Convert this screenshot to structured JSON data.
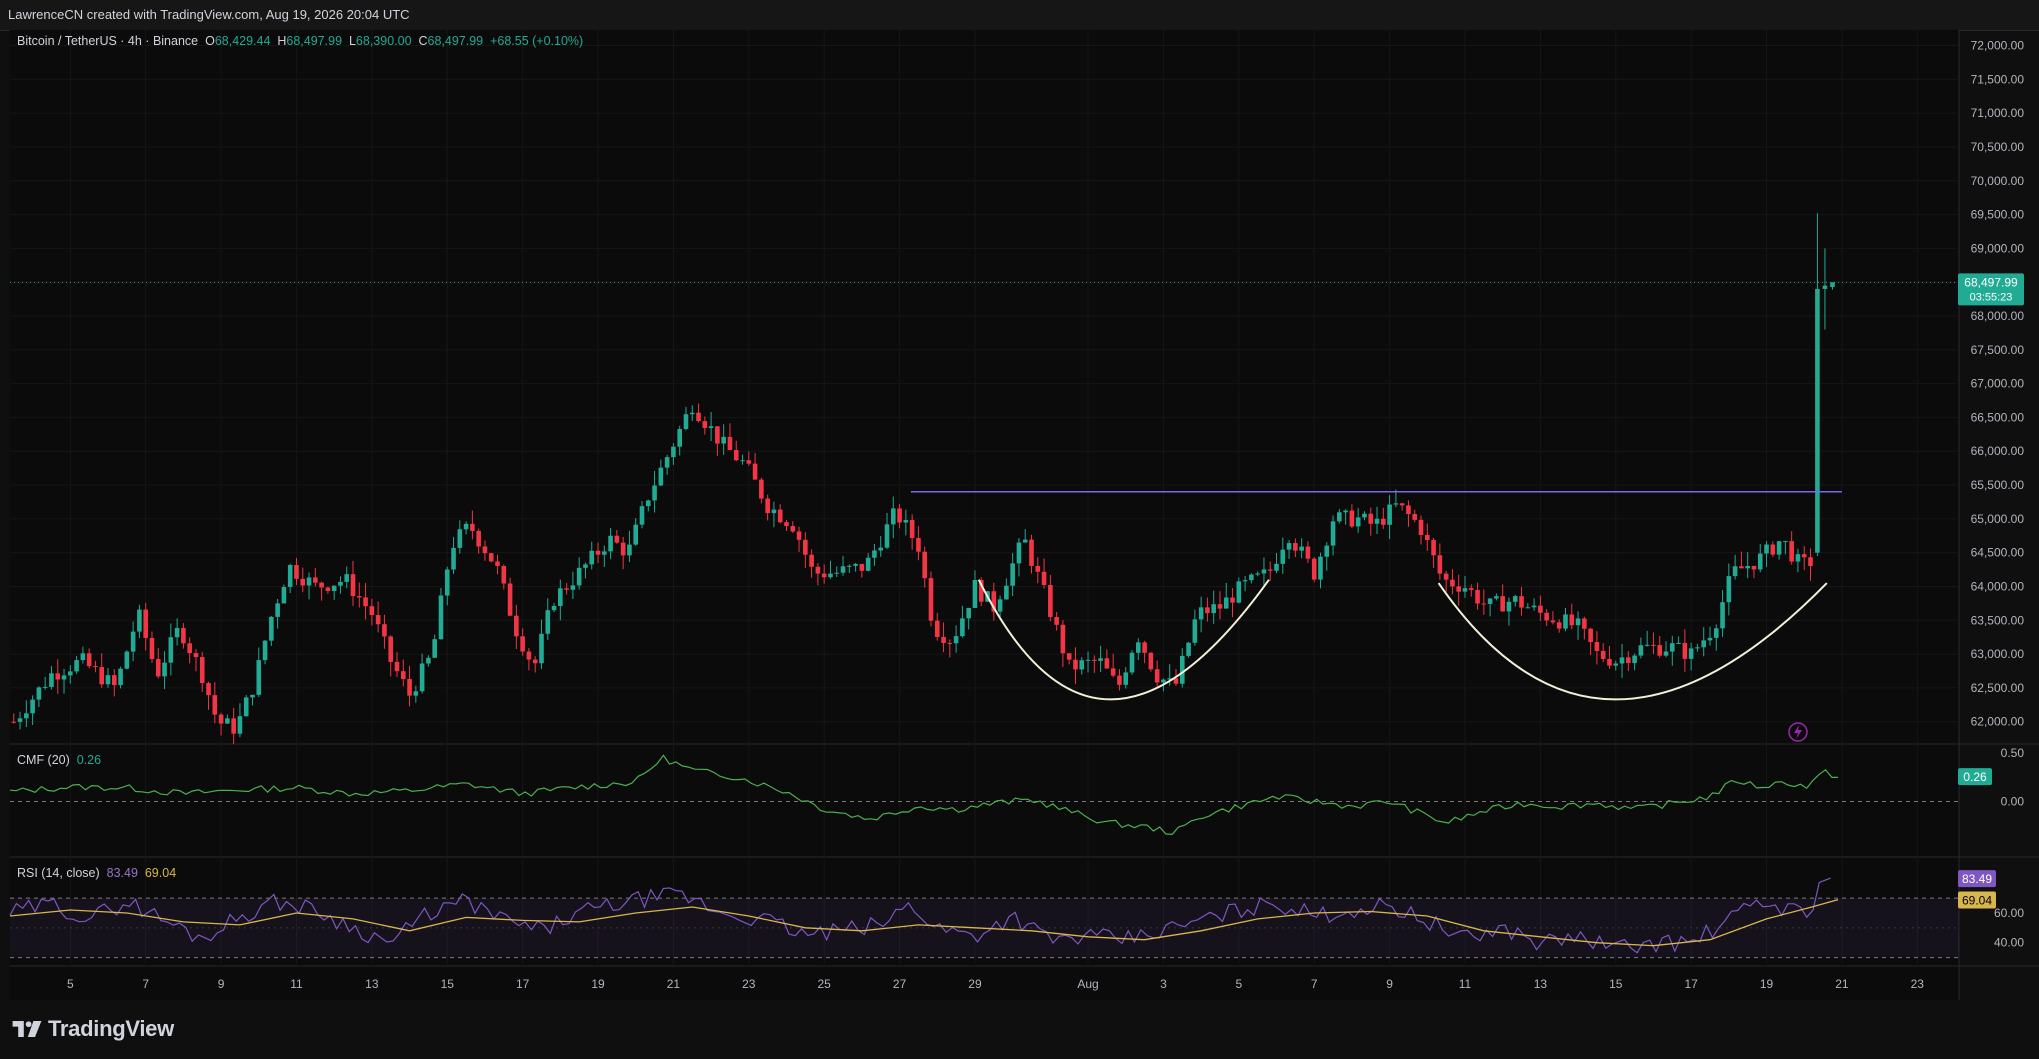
{
  "header": {
    "created_by": "LawrenceCN created with TradingView.com, Aug 19, 2026 20:04 UTC"
  },
  "legend": {
    "symbol": "Bitcoin / TetherUS · 4h · Binance",
    "o_label": "O",
    "o_value": "68,429.44",
    "h_label": "H",
    "h_value": "68,497.99",
    "l_label": "L",
    "l_value": "68,390.00",
    "c_label": "C",
    "c_value": "68,497.99",
    "change": "+68.55 (+0.10%)"
  },
  "cmf_legend": {
    "name": "CMF (20)",
    "value": "0.26"
  },
  "rsi_legend": {
    "name": "RSI (14, close)",
    "rsi_value": "83.49",
    "ma_value": "69.04"
  },
  "last_price": {
    "price": "68,497.99",
    "countdown": "03:55:23"
  },
  "brand": {
    "name": "TradingView"
  },
  "colors": {
    "up": "#22ab94",
    "down": "#f23645",
    "rsi": "#7e57c2",
    "rsi_ma": "#d8b64f",
    "cmf": "#4caf50",
    "resistance": "#7b68ee",
    "arc": "#f3f0d8"
  },
  "chart_data": {
    "type": "candlestick",
    "symbol": "Bitcoin / TetherUS",
    "interval": "4h",
    "exchange": "Binance",
    "price_axis": {
      "ylim": [
        61700,
        72200
      ],
      "ticks": [
        "62,000.00",
        "62,500.00",
        "63,000.00",
        "63,500.00",
        "64,000.00",
        "64,500.00",
        "65,000.00",
        "65,500.00",
        "66,000.00",
        "66,500.00",
        "67,000.00",
        "67,500.00",
        "68,000.00",
        "68,500.00",
        "69,000.00",
        "69,500.00",
        "70,000.00",
        "70,500.00",
        "71,000.00",
        "71,500.00",
        "72,000.00"
      ],
      "tick_values": [
        62000,
        62500,
        63000,
        63500,
        64000,
        64500,
        65000,
        65500,
        66000,
        66500,
        67000,
        67500,
        68000,
        68500,
        69000,
        69500,
        70000,
        70500,
        71000,
        71500,
        72000
      ]
    },
    "time_axis": {
      "labels": [
        "5",
        "7",
        "9",
        "11",
        "13",
        "15",
        "17",
        "19",
        "21",
        "23",
        "25",
        "27",
        "29",
        "Aug",
        "3",
        "5",
        "7",
        "9",
        "11",
        "13",
        "15",
        "17",
        "19",
        "21",
        "23"
      ],
      "label_days": [
        5,
        7,
        9,
        11,
        13,
        15,
        17,
        19,
        21,
        23,
        25,
        27,
        29,
        32,
        34,
        36,
        38,
        40,
        42,
        44,
        46,
        48,
        50,
        52,
        54
      ],
      "range_days": [
        3.4,
        55
      ]
    },
    "close_path": [
      [
        3.5,
        62000
      ],
      [
        4.5,
        62700
      ],
      [
        5.3,
        62900
      ],
      [
        6.2,
        62500
      ],
      [
        6.8,
        63600
      ],
      [
        7.3,
        62700
      ],
      [
        7.9,
        63400
      ],
      [
        8.5,
        62700
      ],
      [
        8.9,
        62000
      ],
      [
        9.4,
        61900
      ],
      [
        9.9,
        62600
      ],
      [
        10.3,
        63500
      ],
      [
        10.8,
        64300
      ],
      [
        11.5,
        64000
      ],
      [
        12.3,
        64100
      ],
      [
        13.0,
        63600
      ],
      [
        13.5,
        62900
      ],
      [
        14.0,
        62400
      ],
      [
        14.6,
        63000
      ],
      [
        15.1,
        64600
      ],
      [
        15.6,
        64900
      ],
      [
        16.3,
        64300
      ],
      [
        16.8,
        63400
      ],
      [
        17.3,
        62800
      ],
      [
        17.8,
        63800
      ],
      [
        18.5,
        64200
      ],
      [
        19.3,
        64700
      ],
      [
        19.8,
        64500
      ],
      [
        20.3,
        65300
      ],
      [
        20.9,
        66000
      ],
      [
        21.5,
        66700
      ],
      [
        22.3,
        66100
      ],
      [
        22.9,
        65800
      ],
      [
        23.5,
        65200
      ],
      [
        24.2,
        64900
      ],
      [
        24.7,
        64200
      ],
      [
        25.3,
        64200
      ],
      [
        26.1,
        64300
      ],
      [
        26.9,
        65100
      ],
      [
        27.5,
        64600
      ],
      [
        27.9,
        63400
      ],
      [
        28.4,
        63200
      ],
      [
        29.0,
        64000
      ],
      [
        29.5,
        63700
      ],
      [
        30.3,
        64700
      ],
      [
        30.9,
        63800
      ],
      [
        31.5,
        62800
      ],
      [
        32.3,
        62900
      ],
      [
        32.8,
        62500
      ],
      [
        33.3,
        63300
      ],
      [
        33.8,
        62700
      ],
      [
        34.3,
        62500
      ],
      [
        34.9,
        63600
      ],
      [
        35.5,
        63700
      ],
      [
        36.1,
        64000
      ],
      [
        36.8,
        64200
      ],
      [
        37.3,
        64800
      ],
      [
        38.0,
        64200
      ],
      [
        38.5,
        65000
      ],
      [
        39.2,
        65000
      ],
      [
        39.6,
        64900
      ],
      [
        40.2,
        65200
      ],
      [
        40.8,
        64900
      ],
      [
        41.4,
        64100
      ],
      [
        42.0,
        64000
      ],
      [
        42.6,
        63700
      ],
      [
        43.3,
        63800
      ],
      [
        44.0,
        63600
      ],
      [
        44.5,
        63500
      ],
      [
        45.0,
        63400
      ],
      [
        45.5,
        63000
      ],
      [
        46.0,
        62900
      ],
      [
        46.7,
        63100
      ],
      [
        47.5,
        63100
      ],
      [
        48.0,
        63000
      ],
      [
        48.6,
        63400
      ],
      [
        49.1,
        64200
      ],
      [
        49.8,
        64400
      ],
      [
        50.4,
        64700
      ],
      [
        50.9,
        64300
      ],
      [
        51.3,
        64400
      ],
      [
        51.35,
        68300
      ],
      [
        51.6,
        68429
      ],
      [
        51.9,
        68497.99
      ]
    ],
    "resistance_line": {
      "price": 65400,
      "from_day": 27.3,
      "to_day": 52
    },
    "rounded_bottoms": [
      {
        "start": [
          29.1,
          64100
        ],
        "bottom": [
          32.6,
          62330
        ],
        "end": [
          36.8,
          64100
        ]
      },
      {
        "start": [
          41.3,
          64050
        ],
        "bottom": [
          46.0,
          62330
        ],
        "end": [
          51.6,
          64050
        ]
      }
    ],
    "cmf": {
      "name": "CMF (20)",
      "value": 0.26,
      "ylim": [
        -0.55,
        0.58
      ],
      "ticks": [
        "0.50",
        "0.00"
      ],
      "tick_values": [
        0.5,
        0.0
      ],
      "path": [
        [
          3.4,
          0.1
        ],
        [
          5,
          0.15
        ],
        [
          6.5,
          0.14
        ],
        [
          8,
          0.08
        ],
        [
          9.5,
          0.12
        ],
        [
          11,
          0.14
        ],
        [
          12.5,
          0.08
        ],
        [
          14,
          0.11
        ],
        [
          15.5,
          0.18
        ],
        [
          17,
          0.08
        ],
        [
          18.5,
          0.15
        ],
        [
          20,
          0.2
        ],
        [
          20.7,
          0.45
        ],
        [
          21.5,
          0.32
        ],
        [
          22.7,
          0.25
        ],
        [
          24,
          0.1
        ],
        [
          25,
          -0.08
        ],
        [
          26.2,
          -0.18
        ],
        [
          27.5,
          -0.05
        ],
        [
          28.5,
          -0.08
        ],
        [
          29.5,
          -0.02
        ],
        [
          30.5,
          0.02
        ],
        [
          31.5,
          -0.1
        ],
        [
          32.5,
          -0.22
        ],
        [
          33.5,
          -0.26
        ],
        [
          34.3,
          -0.32
        ],
        [
          35,
          -0.15
        ],
        [
          36,
          -0.05
        ],
        [
          37,
          0.05
        ],
        [
          38,
          0.0
        ],
        [
          39,
          -0.05
        ],
        [
          40,
          0.0
        ],
        [
          40.8,
          -0.12
        ],
        [
          41.5,
          -0.22
        ],
        [
          42.5,
          -0.1
        ],
        [
          43.5,
          -0.02
        ],
        [
          44.5,
          -0.05
        ],
        [
          45.5,
          -0.02
        ],
        [
          46.5,
          -0.08
        ],
        [
          47.5,
          -0.02
        ],
        [
          48.5,
          0.05
        ],
        [
          49.2,
          0.22
        ],
        [
          49.8,
          0.15
        ],
        [
          50.5,
          0.2
        ],
        [
          51.1,
          0.15
        ],
        [
          51.5,
          0.3
        ],
        [
          51.9,
          0.26
        ]
      ]
    },
    "rsi": {
      "name": "RSI (14, close)",
      "value": 83.49,
      "ma_value": 69.04,
      "ylim": [
        25,
        97
      ],
      "ticks": [
        "60.00",
        "40.00"
      ],
      "tick_values": [
        60,
        40
      ],
      "bands": [
        70,
        30
      ],
      "path": [
        [
          3.4,
          60
        ],
        [
          4.5,
          66
        ],
        [
          5.5,
          56
        ],
        [
          6.5,
          68
        ],
        [
          7.5,
          55
        ],
        [
          8.5,
          43
        ],
        [
          9.5,
          58
        ],
        [
          10.5,
          68
        ],
        [
          11.5,
          62
        ],
        [
          12.5,
          50
        ],
        [
          13.5,
          40
        ],
        [
          14.5,
          60
        ],
        [
          15.5,
          68
        ],
        [
          16.5,
          55
        ],
        [
          17.5,
          48
        ],
        [
          18.5,
          60
        ],
        [
          19.5,
          66
        ],
        [
          20.3,
          70
        ],
        [
          21.2,
          72
        ],
        [
          22.3,
          60
        ],
        [
          23.5,
          55
        ],
        [
          24.5,
          45
        ],
        [
          25.5,
          48
        ],
        [
          26.5,
          52
        ],
        [
          27.3,
          66
        ],
        [
          28,
          50
        ],
        [
          29,
          45
        ],
        [
          30,
          58
        ],
        [
          31,
          42
        ],
        [
          32,
          44
        ],
        [
          33,
          42
        ],
        [
          34,
          48
        ],
        [
          35,
          55
        ],
        [
          36,
          62
        ],
        [
          37,
          67
        ],
        [
          38,
          58
        ],
        [
          39,
          62
        ],
        [
          40,
          65
        ],
        [
          41,
          55
        ],
        [
          42,
          42
        ],
        [
          43,
          50
        ],
        [
          44,
          40
        ],
        [
          45,
          44
        ],
        [
          46,
          36
        ],
        [
          47,
          40
        ],
        [
          48,
          40
        ],
        [
          49,
          55
        ],
        [
          49.8,
          68
        ],
        [
          50.5,
          63
        ],
        [
          51.1,
          60
        ],
        [
          51.5,
          83.49
        ]
      ],
      "ma_path": [
        [
          3.4,
          58
        ],
        [
          5,
          62
        ],
        [
          6.5,
          60
        ],
        [
          8,
          54
        ],
        [
          9.5,
          52
        ],
        [
          11,
          60
        ],
        [
          12.5,
          56
        ],
        [
          14,
          48
        ],
        [
          15.5,
          57
        ],
        [
          17,
          55
        ],
        [
          18.5,
          54
        ],
        [
          20,
          60
        ],
        [
          21.5,
          64
        ],
        [
          23,
          58
        ],
        [
          24.5,
          50
        ],
        [
          26,
          48
        ],
        [
          27.5,
          52
        ],
        [
          29,
          50
        ],
        [
          30.5,
          48
        ],
        [
          32,
          44
        ],
        [
          33.5,
          42
        ],
        [
          35,
          48
        ],
        [
          36.5,
          56
        ],
        [
          38,
          60
        ],
        [
          39.5,
          61
        ],
        [
          41,
          58
        ],
        [
          42.5,
          48
        ],
        [
          44,
          44
        ],
        [
          45.5,
          40
        ],
        [
          47,
          38
        ],
        [
          48.5,
          42
        ],
        [
          50,
          56
        ],
        [
          51.2,
          64
        ],
        [
          51.9,
          69.04
        ]
      ]
    }
  }
}
